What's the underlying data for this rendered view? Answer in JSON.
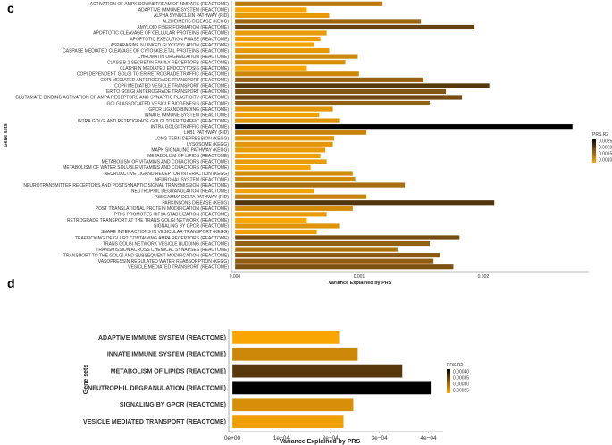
{
  "chart_data": [
    {
      "panel_label": "c",
      "type": "bar",
      "orientation": "horizontal",
      "xlabel": "Variance Explained by PRS",
      "ylabel": "Gene sets",
      "xlim": [
        0,
        0.00285
      ],
      "xticks": [
        "0.000",
        "0.001",
        "0.002"
      ],
      "xtick_values": [
        0,
        0.001,
        0.002
      ],
      "grid": false,
      "legend": {
        "title": "PRS.R2",
        "labels": [
          "0.0025",
          "0.0020",
          "0.0015",
          "0.0010"
        ],
        "placement": "right"
      },
      "color_scale": {
        "low": "#f9a602",
        "high": "#000000"
      },
      "categories": [
        "ACTIVATION OF AMPK DOWNSTREAM OF NMDARS (REACTOME)",
        "ADAPTIVE IMMUNE SYSTEM (REACTOME)",
        "ALPHA SYNUCLEIN PATHWAY (PID)",
        "ALZHEIMERS DISEASE (KEGG)",
        "AMYLOID FIBER FORMATION (REACTOME)",
        "APOPTOTIC CLEAVAGE OF CELLULAR PROTEINS (REACTOME)",
        "APOPTOTIC EXECUTION PHASE (REACTOME)",
        "ASPARAGINE N LINKED GLYCOSYLATION (REACTOME)",
        "CASPASE MEDIATED CLEAVAGE OF CYTOSKELETAL PROTEINS (REACTOME)",
        "CHROMATIN ORGANIZATION (REACTOME)",
        "CLASS B 2 SECRETIN FAMILY RECEPTORS (REACTOME)",
        "CLATHRIN MEDIATED ENDOCYTOSIS (REACTOME)",
        "COPI DEPENDENT GOLGI TO ER RETROGRADE TRAFFIC (REACTOME)",
        "COPI MEDIATED ANTEROGRADE TRANSPORT (REACTOME)",
        "COPII MEDIATED VESICLE TRANSPORT (REACTOME)",
        "ER TO GOLGI ANTEROGRADE TRANSPORT (REACTOME)",
        "GLUTAMATE BINDING ACTIVATION OF AMPA RECEPTORS AND SYNAPTIC PLASTICITY (REACTOME)",
        "GOLGI ASSOCIATED VESICLE BIOGENESIS (REACTOME)",
        "GPCR LIGAND BINDING (REACTOME)",
        "INNATE IMMUNE SYSTEM (REACTOME)",
        "INTRA GOLGI AND RETROGRADE GOLGI TO ER TRAFFIC (REACTOME)",
        "INTRA GOLGI TRAFFIC (REACTOME)",
        "LKB1 PATHWAY (PID)",
        "LONG TERM DEPRESSION (KEGG)",
        "LYSOSOME (KEGG)",
        "MAPK SIGNALING PATHWAY (KEGG)",
        "METABOLISM OF LIPIDS (REACTOME)",
        "METABOLISM OF VITAMINS AND COFACTORS (REACTOME)",
        "METABOLISM OF WATER SOLUBLE VITAMINS AND COFACTORS (REACTOME)",
        "NEUROACTIVE LIGAND RECEPTOR INTERACTION (KEGG)",
        "NEURONAL SYSTEM (REACTOME)",
        "NEUROTRANSMITTER RECEPTORS AND POSTSYNAPTIC SIGNAL TRANSMISSION (REACTOME)",
        "NEUTROPHIL DEGRANULATION (REACTOME)",
        "P38 GAMMA DELTA PATHWAY (PID)",
        "PARKINSONS DISEASE (KEGG)",
        "POST TRANSLATIONAL PROTEIN MODIFICATION (REACTOME)",
        "PTK6 PROMOTES HIF1A STABILIZATION (REACTOME)",
        "RETROGRADE TRANSPORT AT THE TRANS GOLGI NETWORK (REACTOME)",
        "SIGNALING BY GPCR (REACTOME)",
        "SNARE INTERACTIONS IN VESICULAR TRANSPORT (KEGG)",
        "TRAFFICKING OF GLUR2 CONTAINING AMPA RECEPTORS (REACTOME)",
        "TRANS GOLGI NETWORK VESICLE BUDDING (REACTOME)",
        "TRANSMISSION ACROSS CHEMICAL SYNAPSES (REACTOME)",
        "TRANSPORT TO THE GOLGI AND SUBSEQUENT MODIFICATION (REACTOME)",
        "VASOPRESSIN REGULATED WATER REABSORPTION (KEGG)",
        "VESICLE MEDIATED TRANSPORT (REACTOME)"
      ],
      "values": [
        0.00119,
        0.00058,
        0.00076,
        0.0015,
        0.00193,
        0.00074,
        0.00069,
        0.00064,
        0.00076,
        0.00099,
        0.00089,
        0.00058,
        0.001,
        0.00152,
        0.00205,
        0.0017,
        0.00183,
        0.00157,
        0.00079,
        0.00068,
        0.00084,
        0.00272,
        0.00106,
        0.0008,
        0.00079,
        0.00073,
        0.00069,
        0.00074,
        0.00061,
        0.00095,
        0.00097,
        0.00137,
        0.00064,
        0.00106,
        0.00209,
        0.00095,
        0.00074,
        0.00058,
        0.00084,
        0.00066,
        0.00181,
        0.00157,
        0.00131,
        0.00165,
        0.0016,
        0.00176
      ]
    },
    {
      "panel_label": "d",
      "type": "bar",
      "orientation": "horizontal",
      "xlabel": "Variance Explained by PRS",
      "ylabel": "Gene sets",
      "xlim": [
        0,
        0.00043
      ],
      "xticks": [
        "0e+00",
        "1e−04",
        "2e−04",
        "3e−04",
        "4e−04"
      ],
      "xtick_values": [
        0,
        0.0001,
        0.0002,
        0.0003,
        0.0004
      ],
      "grid": false,
      "legend": {
        "title": "PRS.R2",
        "labels": [
          "0.00040",
          "0.00035",
          "0.00030",
          "0.00025"
        ],
        "placement": "right"
      },
      "color_scale": {
        "low": "#f9a602",
        "high": "#000000"
      },
      "categories": [
        "ADAPTIVE IMMUNE SYSTEM (REACTOME)",
        "INNATE IMMUNE SYSTEM (REACTOME)",
        "METABOLISM OF LIPIDS (REACTOME)",
        "NEUTROPHIL DEGRANULATION (REACTOME)",
        "SIGNALING BY GPCR (REACTOME)",
        "VESICLE MEDIATED TRANSPORT (REACTOME)"
      ],
      "values": [
        0.000218,
        0.000256,
        0.000347,
        0.000405,
        0.000247,
        0.000227
      ]
    }
  ]
}
